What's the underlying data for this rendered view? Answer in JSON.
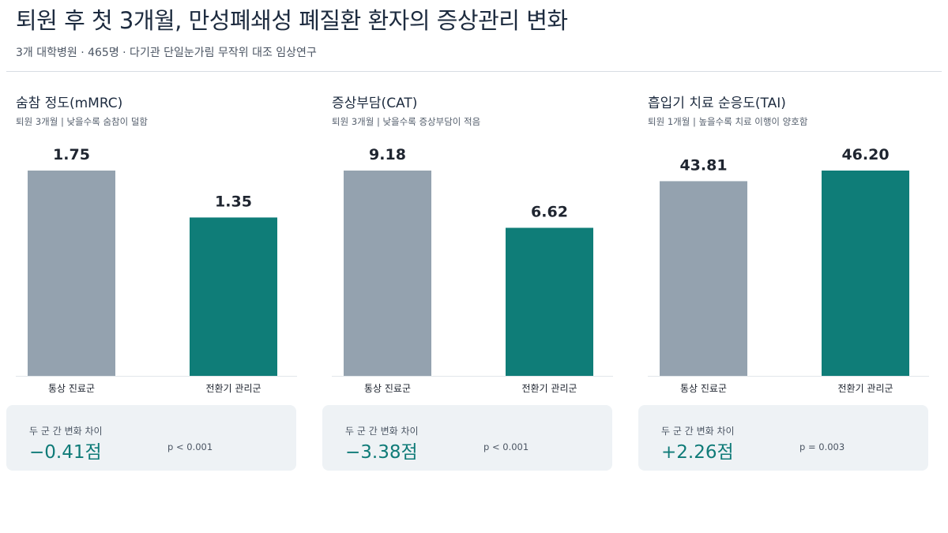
{
  "header": {
    "title": "퇴원 후 첫 3개월, 만성폐쇄성 폐질환 환자의 증상관리 변화",
    "subtitle": "3개 대학병원 · 465명 · 다기관 단일눈가림 무작위 대조 임상연구"
  },
  "colors": {
    "usual": "#94a2af",
    "transition": "#0f7d78",
    "accent": "#0f7b78"
  },
  "chart_data": [
    {
      "type": "bar",
      "title": "숨참 정도(mMRC)",
      "subtitle": "퇴원 3개월 | 낮을수록 숨참이 덜함",
      "categories": [
        "통상 진료군",
        "전환기 관리군"
      ],
      "values": [
        1.75,
        1.35
      ],
      "value_labels": [
        "1.75",
        "1.35"
      ],
      "ylim": [
        0,
        1.75
      ],
      "summary": {
        "label": "두 군 간 변화 차이",
        "value": "−0.41점",
        "p": "p < 0.001"
      }
    },
    {
      "type": "bar",
      "title": "증상부담(CAT)",
      "subtitle": "퇴원 3개월 | 낮을수록 증상부담이 적음",
      "categories": [
        "통상 진료군",
        "전환기 관리군"
      ],
      "values": [
        9.18,
        6.62
      ],
      "value_labels": [
        "9.18",
        "6.62"
      ],
      "ylim": [
        0,
        9.18
      ],
      "summary": {
        "label": "두 군 간 변화 차이",
        "value": "−3.38점",
        "p": "p < 0.001"
      }
    },
    {
      "type": "bar",
      "title": "흡입기 치료 순응도(TAI)",
      "subtitle": "퇴원 1개월 | 높을수록 치료 이행이 양호함",
      "categories": [
        "통상 진료군",
        "전환기 관리군"
      ],
      "values": [
        43.81,
        46.2
      ],
      "value_labels": [
        "43.81",
        "46.20"
      ],
      "ylim": [
        0,
        46.2
      ],
      "summary": {
        "label": "두 군 간 변화 차이",
        "value": "+2.26점",
        "p": "p = 0.003"
      }
    }
  ]
}
